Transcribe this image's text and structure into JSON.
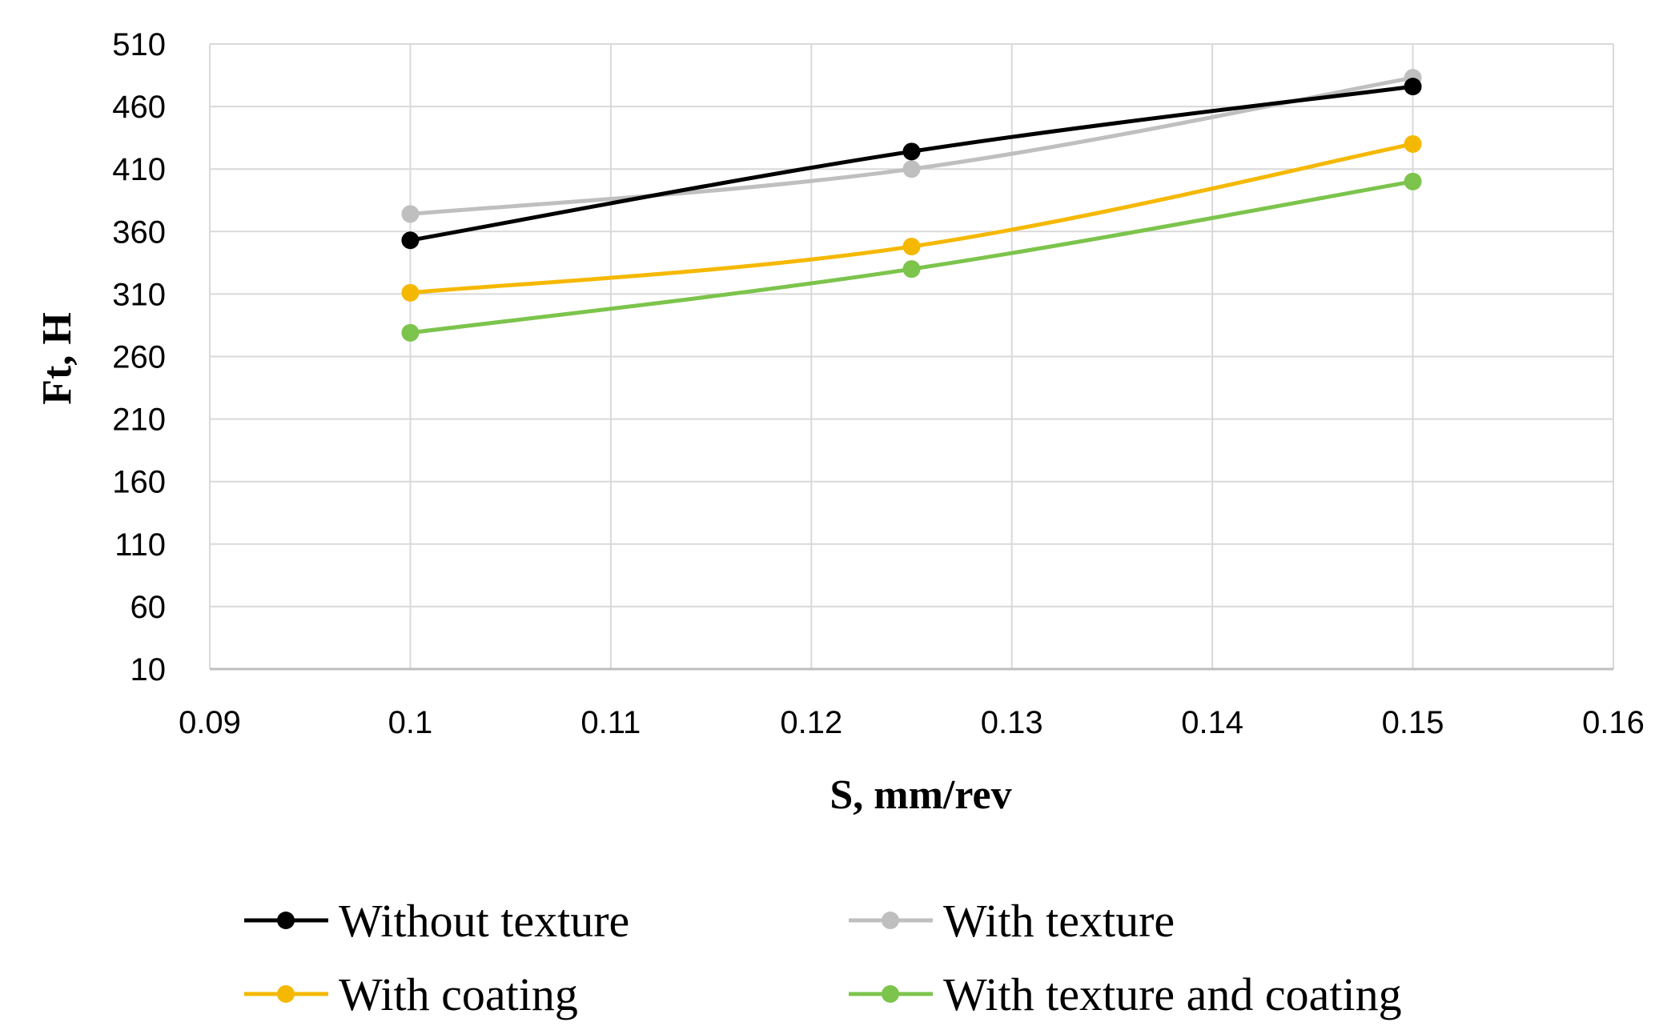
{
  "chart_data": {
    "type": "line",
    "xlabel": "S, mm/rev",
    "ylabel": "Ft, H",
    "xlim": [
      0.09,
      0.16
    ],
    "ylim": [
      10,
      510
    ],
    "xticks": [
      "0.09",
      "0.1",
      "0.11",
      "0.12",
      "0.13",
      "0.14",
      "0.15",
      "0.16"
    ],
    "yticks": [
      "10",
      "60",
      "110",
      "160",
      "210",
      "260",
      "310",
      "360",
      "410",
      "460",
      "510"
    ],
    "grid": true,
    "legend_position": "bottom",
    "x": [
      0.1,
      0.125,
      0.15
    ],
    "series": [
      {
        "name": "Without texture",
        "color": "#000000",
        "values": [
          353,
          424,
          476
        ]
      },
      {
        "name": "With texture",
        "color": "#bfbfbf",
        "values": [
          374,
          410,
          483
        ]
      },
      {
        "name": "With coating",
        "color": "#f5b800",
        "values": [
          311,
          348,
          430
        ]
      },
      {
        "name": "With texture and coating",
        "color": "#7cc44c",
        "values": [
          279,
          330,
          400
        ]
      }
    ]
  }
}
